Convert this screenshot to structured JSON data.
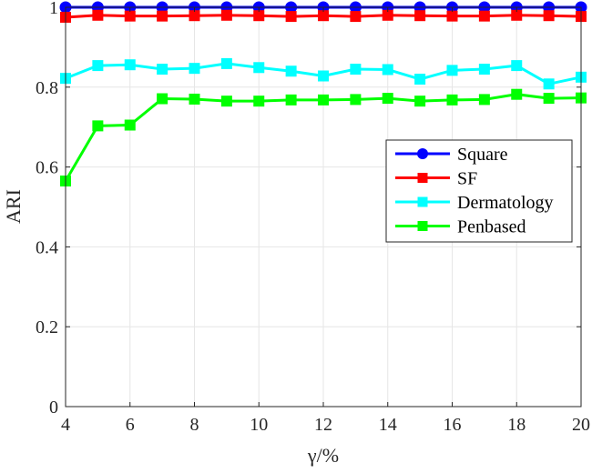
{
  "chart_data": {
    "type": "line",
    "title": "",
    "xlabel": "γ/%",
    "ylabel": "ARI",
    "xlim": [
      4,
      20
    ],
    "ylim": [
      0,
      1
    ],
    "x_ticks": [
      "4",
      "6",
      "8",
      "10",
      "12",
      "14",
      "16",
      "18",
      "20"
    ],
    "y_ticks": [
      "0",
      "0.2",
      "0.4",
      "0.6",
      "0.8",
      "1"
    ],
    "grid": true,
    "legend_position": "right",
    "x": [
      4,
      5,
      6,
      7,
      8,
      9,
      10,
      11,
      12,
      13,
      14,
      15,
      16,
      17,
      18,
      19,
      20
    ],
    "series": [
      {
        "name": "Square",
        "color": "#0000ff",
        "marker": "circle",
        "values": [
          1,
          1,
          1,
          1,
          1,
          1,
          1,
          1,
          1,
          1,
          1,
          1,
          1,
          1,
          1,
          1,
          1
        ]
      },
      {
        "name": "SF",
        "color": "#ff0000",
        "marker": "square",
        "values": [
          0.975,
          0.98,
          0.978,
          0.978,
          0.979,
          0.98,
          0.979,
          0.977,
          0.979,
          0.977,
          0.98,
          0.979,
          0.978,
          0.978,
          0.98,
          0.979,
          0.977
        ]
      },
      {
        "name": "Dermatology",
        "color": "#00ffff",
        "marker": "square",
        "values": [
          0.822,
          0.854,
          0.856,
          0.845,
          0.847,
          0.859,
          0.849,
          0.84,
          0.828,
          0.845,
          0.844,
          0.82,
          0.842,
          0.845,
          0.854,
          0.808,
          0.825
        ]
      },
      {
        "name": "Penbased",
        "color": "#00ff00",
        "marker": "square",
        "values": [
          0.565,
          0.703,
          0.705,
          0.771,
          0.77,
          0.765,
          0.765,
          0.768,
          0.768,
          0.769,
          0.772,
          0.765,
          0.768,
          0.769,
          0.782,
          0.772,
          0.773
        ]
      }
    ]
  }
}
